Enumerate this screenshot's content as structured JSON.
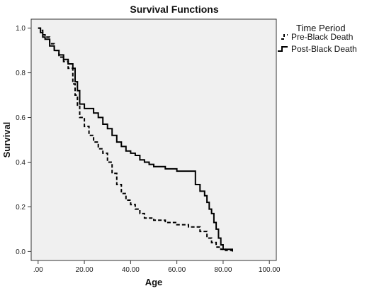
{
  "chart_data": {
    "type": "line",
    "title": "Survival Functions",
    "xlabel": "Age",
    "ylabel": "Survival",
    "xlim": [
      -3,
      103
    ],
    "ylim": [
      -0.04,
      1.04
    ],
    "xticks": [
      0,
      20,
      40,
      60,
      80,
      100
    ],
    "xtick_labels": [
      ".00",
      "20.00",
      "40.00",
      "60.00",
      "80.00",
      "100.00"
    ],
    "yticks": [
      0,
      0.2,
      0.4,
      0.6,
      0.8,
      1
    ],
    "ytick_labels": [
      "0.0",
      "0.2",
      "0.4",
      "0.6",
      "0.8",
      "1.0"
    ],
    "grid": false,
    "background": "#f0f0f0",
    "legend": {
      "title": "Time Period",
      "placement": "right"
    },
    "series": [
      {
        "name": "Pre-Black Death",
        "style": "dashed",
        "color": "#000000",
        "x": [
          0,
          1,
          2,
          3,
          5,
          7,
          9,
          11,
          13,
          15,
          16,
          17,
          18,
          20,
          22,
          24,
          26,
          28,
          30,
          32,
          34,
          36,
          38,
          40,
          42,
          44,
          46,
          50,
          55,
          60,
          65,
          70,
          73,
          75,
          77,
          79,
          81,
          84
        ],
        "y": [
          1.0,
          0.99,
          0.97,
          0.96,
          0.93,
          0.9,
          0.87,
          0.85,
          0.82,
          0.75,
          0.7,
          0.65,
          0.6,
          0.56,
          0.52,
          0.49,
          0.46,
          0.44,
          0.4,
          0.35,
          0.3,
          0.26,
          0.23,
          0.21,
          0.19,
          0.17,
          0.15,
          0.14,
          0.13,
          0.12,
          0.11,
          0.09,
          0.06,
          0.04,
          0.02,
          0.01,
          0.005,
          0.0
        ]
      },
      {
        "name": "Post-Black Death",
        "style": "solid",
        "color": "#000000",
        "x": [
          0,
          1,
          2,
          3,
          5,
          7,
          9,
          11,
          13,
          15,
          16,
          17,
          18,
          20,
          22,
          24,
          26,
          28,
          30,
          32,
          34,
          36,
          38,
          40,
          42,
          44,
          46,
          48,
          50,
          55,
          60,
          66,
          68,
          70,
          72,
          73,
          74,
          75,
          76,
          77,
          78,
          79,
          80,
          82,
          84
        ],
        "y": [
          1.0,
          0.98,
          0.96,
          0.95,
          0.92,
          0.9,
          0.88,
          0.86,
          0.84,
          0.82,
          0.76,
          0.72,
          0.66,
          0.64,
          0.64,
          0.62,
          0.6,
          0.57,
          0.55,
          0.52,
          0.49,
          0.47,
          0.45,
          0.44,
          0.43,
          0.41,
          0.4,
          0.39,
          0.38,
          0.37,
          0.36,
          0.36,
          0.3,
          0.27,
          0.25,
          0.22,
          0.19,
          0.17,
          0.13,
          0.1,
          0.06,
          0.03,
          0.01,
          0.01,
          0.0
        ]
      }
    ]
  }
}
